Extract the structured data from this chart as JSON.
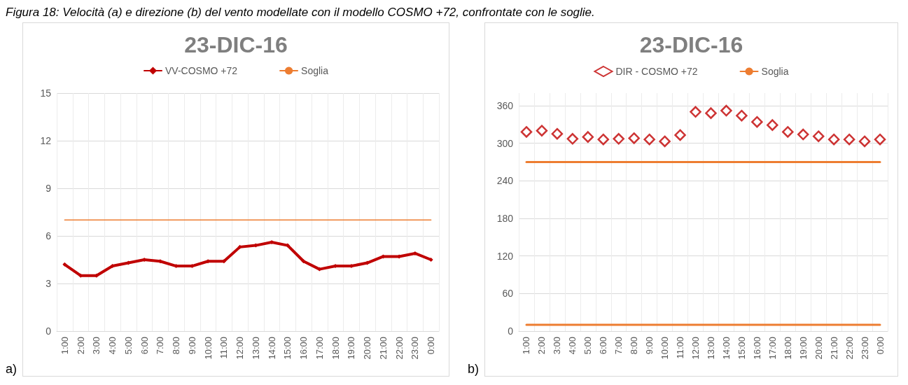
{
  "chart_data": [
    {
      "type": "line",
      "title": "23-DIC-16",
      "annotations": [
        "Figura 18: Velocità (a) e direzione (b) del vento modellate con il modello COSMO +72, confrontate con le soglie.",
        "a)"
      ],
      "categories": [
        "1:00",
        "2:00",
        "3:00",
        "4:00",
        "5:00",
        "6:00",
        "7:00",
        "8:00",
        "9:00",
        "10:00",
        "11:00",
        "12:00",
        "13:00",
        "14:00",
        "15:00",
        "16:00",
        "17:00",
        "18:00",
        "19:00",
        "20:00",
        "21:00",
        "22:00",
        "23:00",
        "0:00"
      ],
      "series": [
        {
          "name": "VV-COSMO +72",
          "color": "#c00000",
          "marker": "diamond",
          "values": [
            4.2,
            3.5,
            3.5,
            4.1,
            4.3,
            4.5,
            4.4,
            4.1,
            4.1,
            4.4,
            4.4,
            5.3,
            5.4,
            5.6,
            5.4,
            4.4,
            3.9,
            4.1,
            4.1,
            4.3,
            4.7,
            4.7,
            4.9,
            4.5
          ]
        },
        {
          "name": "Soglia",
          "color": "#ed7d31",
          "marker": "none",
          "values": [
            7,
            7,
            7,
            7,
            7,
            7,
            7,
            7,
            7,
            7,
            7,
            7,
            7,
            7,
            7,
            7,
            7,
            7,
            7,
            7,
            7,
            7,
            7,
            7
          ]
        }
      ],
      "ylim": [
        0,
        15
      ],
      "yticks": [
        0,
        3,
        6,
        9,
        12,
        15
      ],
      "grid": true,
      "legend": "top"
    },
    {
      "type": "scatter",
      "title": "23-DIC-16",
      "annotations": [
        "b)"
      ],
      "categories": [
        "1:00",
        "2:00",
        "3:00",
        "4:00",
        "5:00",
        "6:00",
        "7:00",
        "8:00",
        "9:00",
        "10:00",
        "11:00",
        "12:00",
        "13:00",
        "14:00",
        "15:00",
        "16:00",
        "17:00",
        "18:00",
        "19:00",
        "20:00",
        "21:00",
        "22:00",
        "23:00",
        "0:00"
      ],
      "series": [
        {
          "name": "DIR - COSMO +72",
          "color": "#c00000",
          "marker": "diamond",
          "values": [
            318,
            320,
            315,
            307,
            310,
            306,
            307,
            308,
            306,
            303,
            313,
            350,
            348,
            352,
            344,
            334,
            329,
            318,
            314,
            311,
            306,
            306,
            303,
            306
          ]
        },
        {
          "name": "Soglia",
          "type": "line",
          "color": "#ed7d31",
          "marker": "none",
          "values": [
            270,
            270,
            270,
            270,
            270,
            270,
            270,
            270,
            270,
            270,
            270,
            270,
            270,
            270,
            270,
            270,
            270,
            270,
            270,
            270,
            270,
            270,
            270,
            270
          ]
        },
        {
          "type": "line",
          "color": "#ed7d31",
          "marker": "none",
          "values": [
            10,
            10,
            10,
            10,
            10,
            10,
            10,
            10,
            10,
            10,
            10,
            10,
            10,
            10,
            10,
            10,
            10,
            10,
            10,
            10,
            10,
            10,
            10,
            10
          ]
        }
      ],
      "ylim": [
        0,
        380
      ],
      "yticks": [
        0,
        60,
        120,
        180,
        240,
        300,
        360
      ],
      "grid": true,
      "legend": "top"
    }
  ]
}
